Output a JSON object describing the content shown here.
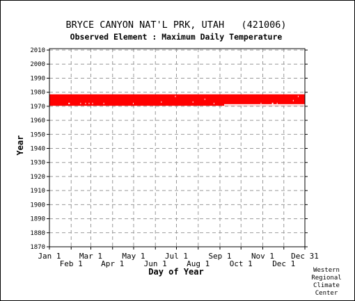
{
  "chart_data": {
    "type": "scatter",
    "title": "BRYCE CANYON NAT'L PRK, UTAH   (421006)",
    "subtitle": "Observed Element : Maximum Daily Temperature",
    "xlabel": "Day of Year",
    "ylabel": "Year",
    "x_ticks_top_row": [
      "Jan 1",
      "Mar 1",
      "May 1",
      "Jul 1",
      "Sep 1",
      "Nov 1",
      "Dec 31"
    ],
    "x_ticks_bottom_row": [
      "Feb 1",
      "Apr 1",
      "Jun 1",
      "Aug 1",
      "Oct 1",
      "Dec 1"
    ],
    "x_tick_days": [
      1,
      32,
      60,
      91,
      121,
      152,
      182,
      213,
      244,
      274,
      305,
      335,
      365
    ],
    "y_ticks": [
      2010,
      2000,
      1990,
      1980,
      1970,
      1960,
      1950,
      1940,
      1930,
      1920,
      1910,
      1900,
      1890,
      1880,
      1870
    ],
    "ylim": [
      1870,
      2011
    ],
    "xlim": [
      1,
      365
    ],
    "grid": true,
    "series": [
      {
        "color": "#ff0000",
        "years_observed": [
          1971,
          1972,
          1973,
          1974,
          1975,
          1976,
          1977,
          1978
        ],
        "day_range": [
          1,
          365
        ]
      }
    ],
    "gaps": [
      {
        "year": 1971,
        "day_start": 250,
        "day_end": 365
      },
      {
        "year": 1972,
        "day_start": 28,
        "day_end": 30
      },
      {
        "year": 1972,
        "day_start": 45,
        "day_end": 46
      },
      {
        "year": 1972,
        "day_start": 52,
        "day_end": 53
      },
      {
        "year": 1972,
        "day_start": 57,
        "day_end": 58
      },
      {
        "year": 1972,
        "day_start": 62,
        "day_end": 63
      },
      {
        "year": 1972,
        "day_start": 78,
        "day_end": 79
      },
      {
        "year": 1972,
        "day_start": 120,
        "day_end": 121
      },
      {
        "year": 1972,
        "day_start": 235,
        "day_end": 236
      },
      {
        "year": 1972,
        "day_start": 302,
        "day_end": 303
      },
      {
        "year": 1972,
        "day_start": 318,
        "day_end": 320
      },
      {
        "year": 1972,
        "day_start": 325,
        "day_end": 326
      },
      {
        "year": 1973,
        "day_start": 160,
        "day_end": 161
      },
      {
        "year": 1973,
        "day_start": 205,
        "day_end": 206
      },
      {
        "year": 1974,
        "day_start": 348,
        "day_end": 349
      },
      {
        "year": 1975,
        "day_start": 222,
        "day_end": 223
      },
      {
        "year": 1977,
        "day_start": 180,
        "day_end": 181
      },
      {
        "year": 1977,
        "day_start": 355,
        "day_end": 356
      }
    ]
  },
  "credit": [
    "Western",
    "Regional",
    "Climate",
    "Center"
  ]
}
